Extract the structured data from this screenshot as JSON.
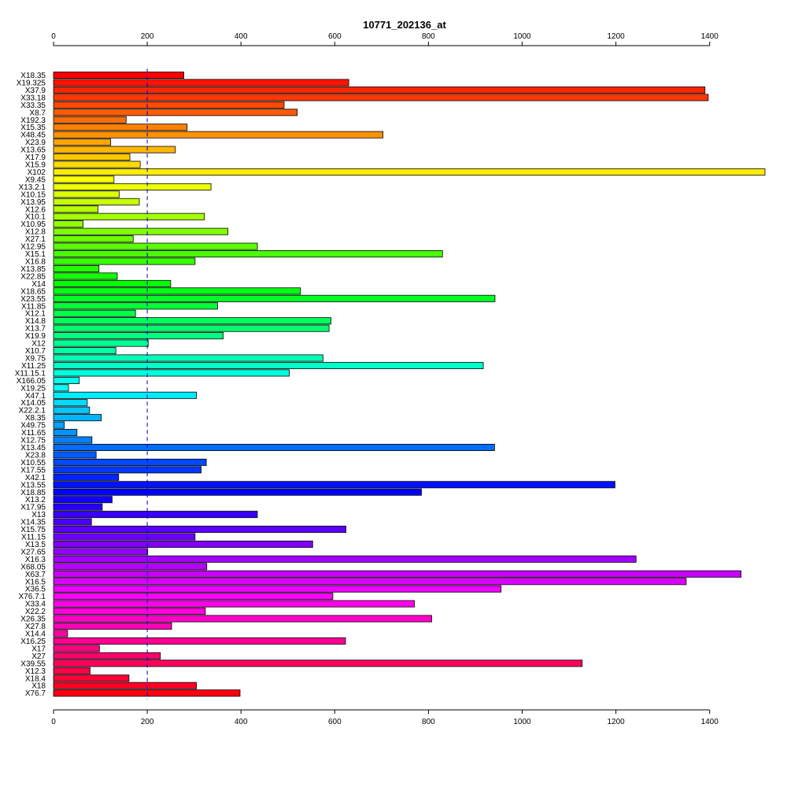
{
  "chart_data": {
    "type": "bar",
    "orientation": "horizontal",
    "title": "10771_202136_at",
    "xlabel": "",
    "ylabel": "",
    "xlim": [
      0,
      1520
    ],
    "xticks": [
      0,
      200,
      400,
      600,
      800,
      1000,
      1200,
      1400
    ],
    "xtick_labels": [
      "0",
      "200",
      "400",
      "600",
      "800",
      "1000",
      "1200",
      "1400"
    ],
    "axes": [
      "top",
      "bottom"
    ],
    "reference_line": {
      "x": 200,
      "style": "dashed",
      "color": "#0000cc"
    },
    "color_scheme": "rainbow",
    "categories": [
      "X18.35",
      "X19.325",
      "X37.9",
      "X33.18",
      "X33.35",
      "X8.7",
      "X192.3",
      "X15.35",
      "X48.45",
      "X23.9",
      "X13.65",
      "X17.9",
      "X15.9",
      "X102",
      "X9.45",
      "X13.2.1",
      "X10.15",
      "X13.95",
      "X12.6",
      "X10.1",
      "X10.95",
      "X12.8",
      "X27.1",
      "X12.95",
      "X15.1",
      "X16.8",
      "X13.85",
      "X22.85",
      "X14",
      "X18.65",
      "X23.55",
      "X11.85",
      "X12.1",
      "X14.8",
      "X13.7",
      "X19.9",
      "X12",
      "X10.7",
      "X9.75",
      "X11.25",
      "X11.15.1",
      "X166.05",
      "X19.25",
      "X47.1",
      "X14.05",
      "X22.2.1",
      "X8.35",
      "X49.75",
      "X11.65",
      "X12.75",
      "X13.45",
      "X23.8",
      "X10.55",
      "X17.55",
      "X42.1",
      "X13.55",
      "X18.85",
      "X13.2",
      "X17.95",
      "X13",
      "X14.35",
      "X15.75",
      "X11.15",
      "X13.5",
      "X27.65",
      "X16.3",
      "X68.05",
      "X63.7",
      "X16.5",
      "X36.5",
      "X76.7.1",
      "X33.4",
      "X22.2",
      "X26.35",
      "X27.8",
      "X14.4",
      "X16.25",
      "X17",
      "X27",
      "X39.55",
      "X12.3",
      "X18.4",
      "X18",
      "X76.7"
    ],
    "values": [
      278,
      630,
      1390,
      1397,
      492,
      520,
      155,
      285,
      703,
      122,
      260,
      163,
      185,
      1518,
      129,
      336,
      140,
      183,
      95,
      322,
      63,
      372,
      170,
      435,
      830,
      302,
      97,
      136,
      250,
      527,
      942,
      350,
      175,
      592,
      588,
      362,
      202,
      133,
      575,
      917,
      503,
      55,
      32,
      305,
      72,
      77,
      102,
      23,
      50,
      82,
      941,
      91,
      326,
      315,
      139,
      1198,
      785,
      125,
      104,
      435,
      81,
      624,
      302,
      553,
      201,
      1243,
      327,
      1467,
      1350,
      955,
      596,
      770,
      324,
      807,
      252,
      30,
      623,
      98,
      228,
      1128,
      78,
      161,
      305,
      398
    ]
  }
}
